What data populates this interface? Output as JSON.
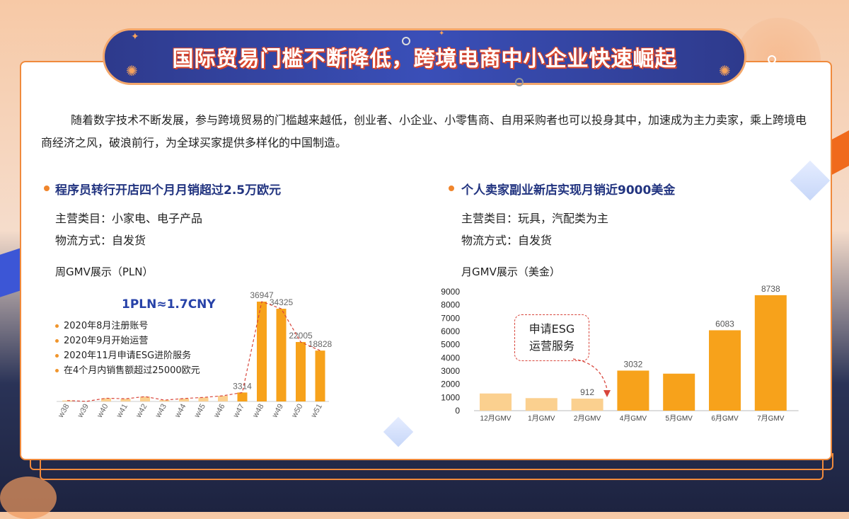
{
  "banner": {
    "title": "国际贸易门槛不断降低，跨境电商中小企业快速崛起"
  },
  "intro": "随着数字技术不断发展，参与跨境贸易的门槛越来越低，创业者、小企业、小零售商、自用采购者也可以投身其中，加速成为主力卖家，乘上跨境电商经济之风，破浪前行，为全球买家提供多样化的中国制造。",
  "left": {
    "title": "程序员转行开店四个月月销超过2.5万欧元",
    "category": "主营类目：小家电、电子产品",
    "logistics": "物流方式：自发货",
    "chart_label": "周GMV展示（PLN）",
    "rate": "1PLN≈1.7CNY",
    "notes": [
      "2020年8月注册账号",
      "2020年9月开始运营",
      "2020年11月申请ESG进阶服务",
      "在4个月内销售额超过25000欧元"
    ]
  },
  "right": {
    "title": "个人卖家副业新店实现月销近9000美金",
    "category": "主营类目：玩具，汽配类为主",
    "logistics": "物流方式：自发货",
    "chart_label": "月GMV展示（美金）",
    "esg_line1": "申请ESG",
    "esg_line2": "运营服务"
  },
  "colors": {
    "accent": "#f7a21b",
    "light_bar": "#fbd08f",
    "navy": "#223480",
    "trend": "#d8453b"
  },
  "chart_data": [
    {
      "type": "bar",
      "title": "周GMV展示（PLN）",
      "categories": [
        "w38",
        "w39",
        "w40",
        "w41",
        "w42",
        "w43",
        "w44",
        "w45",
        "w46",
        "w47",
        "w48",
        "w49",
        "w50",
        "w51"
      ],
      "values": [
        350,
        50,
        1200,
        1000,
        1800,
        500,
        1100,
        1500,
        2100,
        3314,
        36947,
        34325,
        22005,
        18828
      ],
      "labeled": [
        false,
        false,
        false,
        false,
        false,
        false,
        false,
        false,
        false,
        true,
        true,
        true,
        true,
        true
      ],
      "highlight_from": 9,
      "trend_line": true,
      "ylim": [
        0,
        38000
      ]
    },
    {
      "type": "bar",
      "title": "月GMV展示（美金）",
      "categories": [
        "12月GMV",
        "1月GMV",
        "2月GMV",
        "4月GMV",
        "5月GMV",
        "6月GMV",
        "7月GMV"
      ],
      "values": [
        1300,
        950,
        912,
        3032,
        2800,
        6083,
        8738
      ],
      "labeled": [
        false,
        false,
        true,
        true,
        false,
        true,
        true
      ],
      "highlight_from": 3,
      "yticks": [
        0,
        1000,
        2000,
        3000,
        4000,
        5000,
        6000,
        7000,
        8000,
        9000
      ],
      "ylim": [
        0,
        9000
      ]
    }
  ]
}
